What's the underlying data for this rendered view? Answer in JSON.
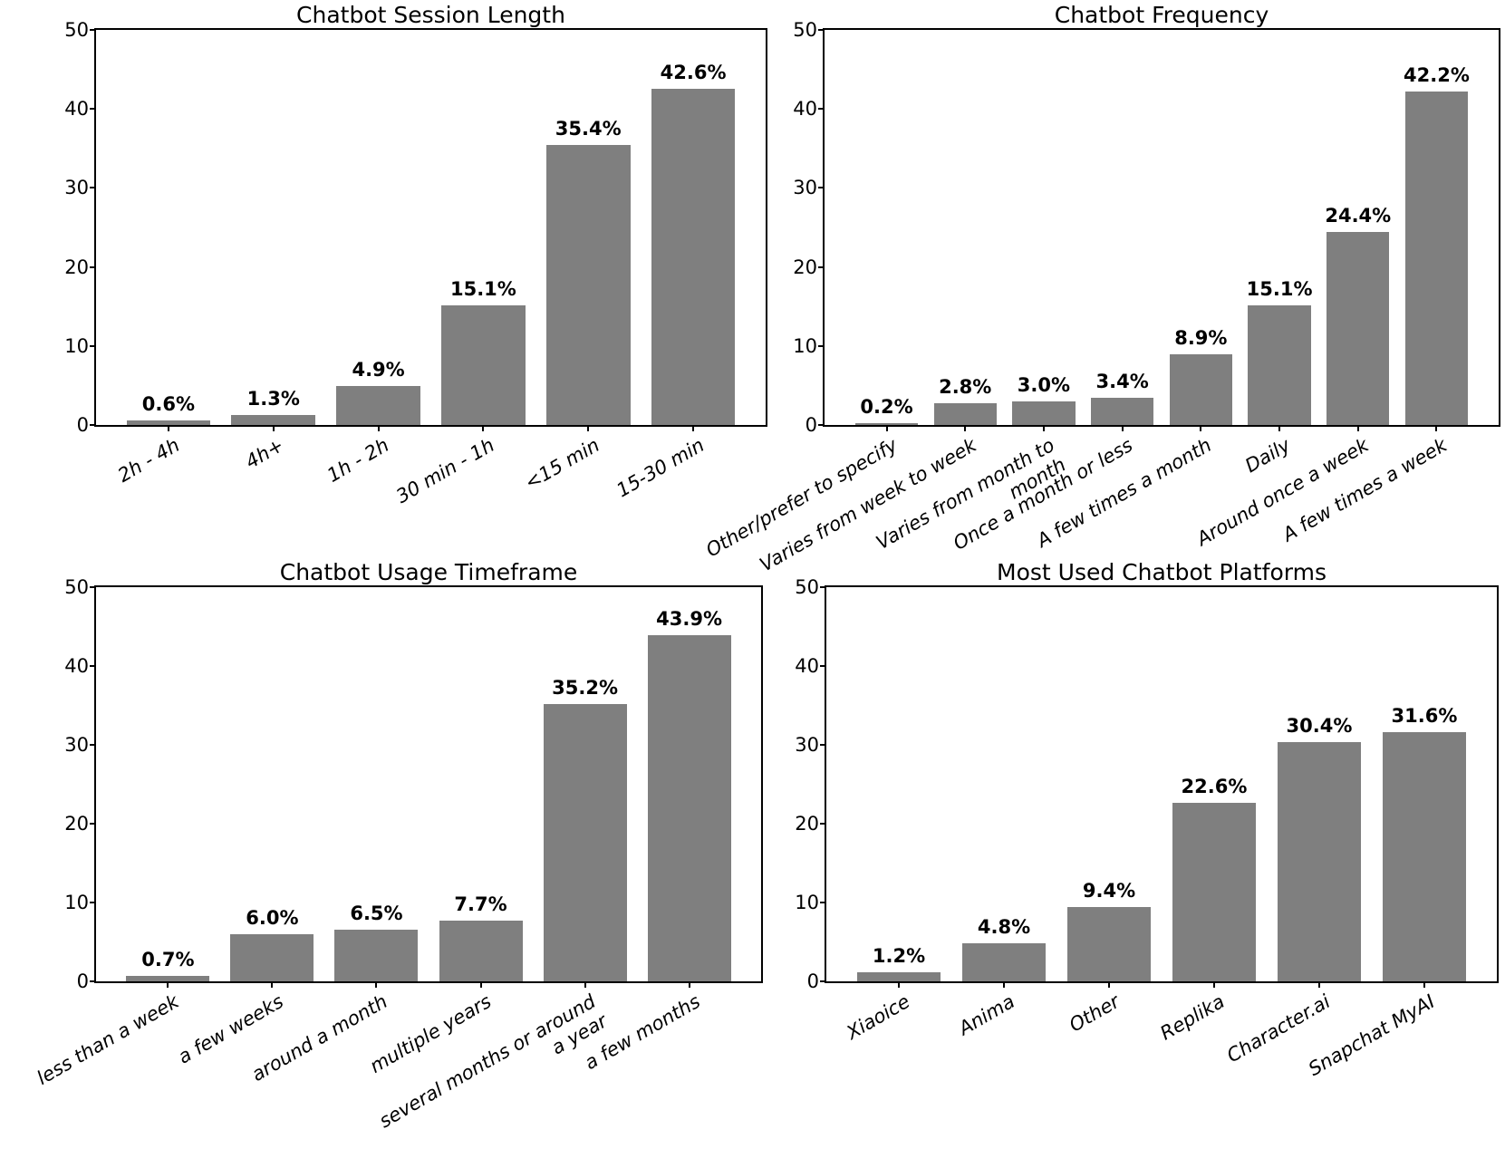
{
  "figure": {
    "background_color": "#ffffff",
    "bar_color": "#7f7f7f",
    "spine_color": "#000000",
    "text_color": "#000000"
  },
  "chart_data": [
    {
      "id": "chatbot-session-length",
      "type": "bar",
      "title": "Chatbot Session Length",
      "categories": [
        "2h - 4h",
        "4h+",
        "1h - 2h",
        "30 min - 1h",
        "<15 min",
        "15-30 min"
      ],
      "values": [
        0.6,
        1.3,
        4.9,
        15.1,
        35.4,
        42.6
      ],
      "bar_labels": [
        "0.6%",
        "1.3%",
        "4.9%",
        "15.1%",
        "35.4%",
        "42.6%"
      ],
      "xlabel": "",
      "ylabel": "",
      "ylim": [
        0,
        50
      ],
      "yticks": [
        0,
        10,
        20,
        30,
        40,
        50
      ],
      "grid": false,
      "legend": null,
      "tick_label_rotation_deg": 30,
      "tick_label_style": "italic"
    },
    {
      "id": "chatbot-frequency",
      "type": "bar",
      "title": "Chatbot Frequency",
      "categories": [
        "Other/prefer to specify",
        "Varies from week to week",
        "Varies from month to\nmonth",
        "Once a month or less",
        "A few times a month",
        "Daily",
        "Around once a week",
        "A few times a week"
      ],
      "values": [
        0.2,
        2.8,
        3.0,
        3.4,
        8.9,
        15.1,
        24.4,
        42.2
      ],
      "bar_labels": [
        "0.2%",
        "2.8%",
        "3.0%",
        "3.4%",
        "8.9%",
        "15.1%",
        "24.4%",
        "42.2%"
      ],
      "xlabel": "",
      "ylabel": "",
      "ylim": [
        0,
        50
      ],
      "yticks": [
        0,
        10,
        20,
        30,
        40,
        50
      ],
      "grid": false,
      "legend": null,
      "tick_label_rotation_deg": 30,
      "tick_label_style": "italic"
    },
    {
      "id": "chatbot-usage-timeframe",
      "type": "bar",
      "title": "Chatbot Usage Timeframe",
      "categories": [
        "less than a week",
        "a few weeks",
        "around a month",
        "multiple years",
        "several months or around\na year",
        "a few months"
      ],
      "values": [
        0.7,
        6.0,
        6.5,
        7.7,
        35.2,
        43.9
      ],
      "bar_labels": [
        "0.7%",
        "6.0%",
        "6.5%",
        "7.7%",
        "35.2%",
        "43.9%"
      ],
      "xlabel": "",
      "ylabel": "",
      "ylim": [
        0,
        50
      ],
      "yticks": [
        0,
        10,
        20,
        30,
        40,
        50
      ],
      "grid": false,
      "legend": null,
      "tick_label_rotation_deg": 30,
      "tick_label_style": "italic"
    },
    {
      "id": "most-used-chatbot-platforms",
      "type": "bar",
      "title": "Most Used Chatbot Platforms",
      "categories": [
        "Xiaoice",
        "Anima",
        "Other",
        "Replika",
        "Character.ai",
        "Snapchat MyAI"
      ],
      "values": [
        1.2,
        4.8,
        9.4,
        22.6,
        30.4,
        31.6
      ],
      "bar_labels": [
        "1.2%",
        "4.8%",
        "9.4%",
        "22.6%",
        "30.4%",
        "31.6%"
      ],
      "xlabel": "",
      "ylabel": "",
      "ylim": [
        0,
        50
      ],
      "yticks": [
        0,
        10,
        20,
        30,
        40,
        50
      ],
      "grid": false,
      "legend": null,
      "tick_label_rotation_deg": 30,
      "tick_label_style": "italic"
    }
  ]
}
